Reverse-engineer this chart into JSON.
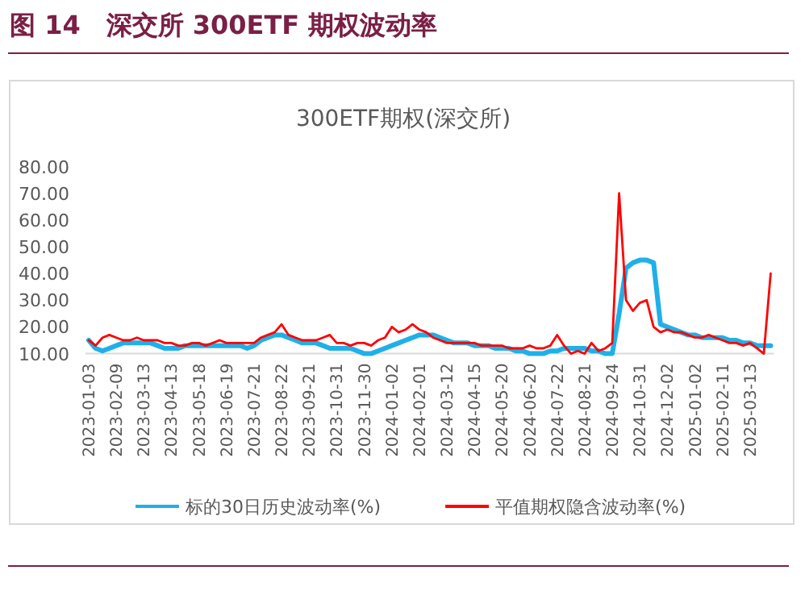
{
  "chart_data": {
    "type": "line",
    "title": "图 14　深交所 300ETF 期权波动率",
    "subtitle": "300ETF期权(深交所)",
    "categories": [
      "2023-01-03",
      null,
      null,
      null,
      "2023-02-09",
      null,
      null,
      null,
      "2023-03-13",
      null,
      null,
      null,
      "2023-04-13",
      null,
      null,
      null,
      "2023-05-18",
      null,
      null,
      null,
      "2023-06-19",
      null,
      null,
      null,
      "2023-07-21",
      null,
      null,
      null,
      "2023-08-22",
      null,
      null,
      null,
      "2023-09-21",
      null,
      null,
      null,
      "2023-10-31",
      null,
      null,
      null,
      "2023-11-30",
      null,
      null,
      null,
      "2024-01-02",
      null,
      null,
      null,
      "2024-02-01",
      null,
      null,
      null,
      "2024-03-12",
      null,
      null,
      null,
      "2024-04-15",
      null,
      null,
      null,
      "2024-05-20",
      null,
      null,
      null,
      "2024-06-20",
      null,
      null,
      null,
      "2024-07-22",
      null,
      null,
      null,
      "2024-08-21",
      null,
      null,
      null,
      "2024-09-24",
      null,
      null,
      null,
      "2024-10-31",
      null,
      null,
      null,
      "2024-12-02",
      null,
      null,
      null,
      "2025-01-02",
      null,
      null,
      null,
      "2025-02-11",
      null,
      null,
      null,
      "2025-03-13",
      null,
      null,
      null
    ],
    "series": [
      {
        "name": "标的30日历史波动率(%)",
        "color": "#1fb0e8",
        "values": [
          15,
          12,
          11,
          12,
          13,
          14,
          14,
          14,
          14,
          14,
          13,
          12,
          12,
          12,
          13,
          13,
          13,
          13,
          13,
          13,
          13,
          13,
          13,
          12,
          13,
          15,
          16,
          17,
          17,
          16,
          15,
          14,
          14,
          14,
          13,
          12,
          12,
          12,
          12,
          11,
          10,
          10,
          11,
          12,
          13,
          14,
          15,
          16,
          17,
          17,
          17,
          16,
          15,
          14,
          14,
          14,
          13,
          13,
          13,
          12,
          12,
          12,
          11,
          11,
          10,
          10,
          10,
          11,
          11,
          12,
          12,
          12,
          12,
          11,
          11,
          10,
          10,
          25,
          42,
          44,
          45,
          45,
          44,
          21,
          20,
          19,
          18,
          17,
          17,
          16,
          16,
          16,
          16,
          15,
          15,
          14,
          14,
          13,
          13,
          13
        ]
      },
      {
        "name": "平值期权隐含波动率(%)",
        "color": "#ff0000",
        "values": [
          15,
          13,
          16,
          17,
          16,
          15,
          15,
          16,
          15,
          15,
          15,
          14,
          14,
          13,
          13,
          14,
          14,
          13,
          14,
          15,
          14,
          14,
          14,
          14,
          14,
          16,
          17,
          18,
          21,
          17,
          16,
          15,
          15,
          15,
          16,
          17,
          14,
          14,
          13,
          14,
          14,
          13,
          15,
          16,
          20,
          18,
          19,
          21,
          19,
          18,
          16,
          15,
          14,
          14,
          14,
          14,
          14,
          13,
          13,
          13,
          13,
          12,
          12,
          12,
          13,
          12,
          12,
          13,
          17,
          13,
          10,
          11,
          10,
          14,
          11,
          12,
          14,
          70,
          30,
          26,
          29,
          30,
          20,
          18,
          19,
          18,
          18,
          17,
          16,
          16,
          17,
          16,
          15,
          14,
          14,
          13,
          14,
          12,
          10,
          40
        ]
      }
    ],
    "ylim": [
      10,
      80
    ],
    "yticks": [
      {
        "value": 10,
        "label": "10.00"
      },
      {
        "value": 20,
        "label": "20.00"
      },
      {
        "value": 30,
        "label": "30.00"
      },
      {
        "value": 40,
        "label": "40.00"
      },
      {
        "value": 50,
        "label": "50.00"
      },
      {
        "value": 60,
        "label": "60.00"
      },
      {
        "value": 70,
        "label": "70.00"
      },
      {
        "value": 80,
        "label": "80.00"
      }
    ],
    "legend": "bottom"
  }
}
